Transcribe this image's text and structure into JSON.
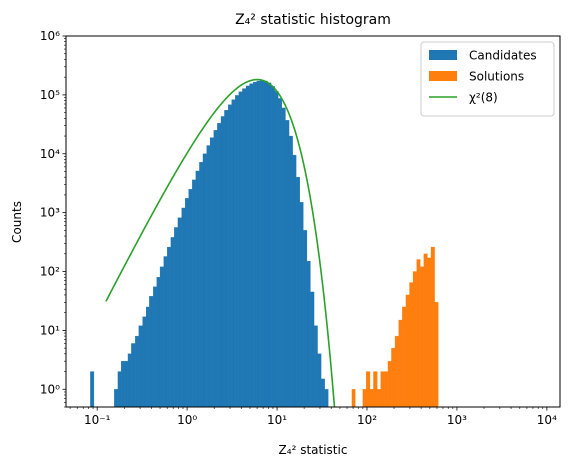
{
  "chart_data": {
    "type": "histogram",
    "title": "Z₄² statistic histogram",
    "xlabel": "Z₄² statistic",
    "ylabel": "Counts",
    "xscale": "log",
    "yscale": "log",
    "xlim": [
      0.045,
      14000
    ],
    "ylim": [
      0.5,
      1000000
    ],
    "x_tick_labels": [
      "10⁻¹",
      "10⁰",
      "10¹",
      "10²",
      "10³",
      "10⁴"
    ],
    "y_tick_labels": [
      "10⁰",
      "10¹",
      "10²",
      "10³",
      "10⁴",
      "10⁵",
      "10⁶"
    ],
    "legend_position": "upper right",
    "colors": {
      "candidates": "#1f77b4",
      "solutions": "#ff7f0e",
      "chi2": "#2ca02c"
    },
    "series": [
      {
        "name": "Candidates",
        "kind": "hist",
        "bins": [
          [
            0.084,
            0.092,
            2
          ],
          [
            0.155,
            0.17,
            1
          ],
          [
            0.17,
            0.185,
            2
          ],
          [
            0.185,
            0.2,
            3
          ],
          [
            0.2,
            0.22,
            3
          ],
          [
            0.22,
            0.24,
            4
          ],
          [
            0.24,
            0.265,
            6
          ],
          [
            0.265,
            0.29,
            8
          ],
          [
            0.29,
            0.32,
            12
          ],
          [
            0.32,
            0.35,
            17
          ],
          [
            0.35,
            0.38,
            25
          ],
          [
            0.38,
            0.42,
            38
          ],
          [
            0.42,
            0.46,
            55
          ],
          [
            0.46,
            0.5,
            80
          ],
          [
            0.5,
            0.55,
            120
          ],
          [
            0.55,
            0.6,
            180
          ],
          [
            0.6,
            0.66,
            260
          ],
          [
            0.66,
            0.72,
            380
          ],
          [
            0.72,
            0.79,
            560
          ],
          [
            0.79,
            0.87,
            820
          ],
          [
            0.87,
            0.95,
            1200
          ],
          [
            0.95,
            1.04,
            1750
          ],
          [
            1.04,
            1.14,
            2500
          ],
          [
            1.14,
            1.25,
            3600
          ],
          [
            1.25,
            1.37,
            5100
          ],
          [
            1.37,
            1.5,
            7200
          ],
          [
            1.5,
            1.65,
            10000
          ],
          [
            1.65,
            1.8,
            13800
          ],
          [
            1.8,
            1.98,
            18800
          ],
          [
            1.98,
            2.17,
            25000
          ],
          [
            2.17,
            2.38,
            33000
          ],
          [
            2.38,
            2.6,
            43000
          ],
          [
            2.6,
            2.86,
            55000
          ],
          [
            2.86,
            3.13,
            68000
          ],
          [
            3.13,
            3.43,
            83000
          ],
          [
            3.43,
            3.76,
            98000
          ],
          [
            3.76,
            4.12,
            113000
          ],
          [
            4.12,
            4.52,
            128000
          ],
          [
            4.52,
            4.95,
            142000
          ],
          [
            4.95,
            5.43,
            155000
          ],
          [
            5.43,
            5.95,
            165000
          ],
          [
            5.95,
            6.52,
            172000
          ],
          [
            6.52,
            7.15,
            175000
          ],
          [
            7.15,
            7.83,
            172000
          ],
          [
            7.83,
            8.58,
            160000
          ],
          [
            8.58,
            9.4,
            140000
          ],
          [
            9.4,
            10.3,
            115000
          ],
          [
            10.3,
            11.3,
            87000
          ],
          [
            11.3,
            12.4,
            60000
          ],
          [
            12.4,
            13.6,
            37000
          ],
          [
            13.6,
            14.9,
            20000
          ],
          [
            14.9,
            16.3,
            9500
          ],
          [
            16.3,
            17.9,
            4000
          ],
          [
            17.9,
            19.6,
            1500
          ],
          [
            19.6,
            21.5,
            500
          ],
          [
            21.5,
            23.5,
            150
          ],
          [
            23.5,
            25.8,
            45
          ],
          [
            25.8,
            28.2,
            12
          ],
          [
            28.2,
            30.9,
            4
          ],
          [
            30.9,
            33.9,
            1.5
          ],
          [
            33.9,
            37.1,
            1
          ]
        ]
      },
      {
        "name": "Solutions",
        "kind": "hist",
        "bins": [
          [
            68,
            74,
            1
          ],
          [
            90,
            98,
            1
          ],
          [
            98,
            108,
            2
          ],
          [
            108,
            118,
            1
          ],
          [
            118,
            130,
            2
          ],
          [
            130,
            142,
            1
          ],
          [
            142,
            156,
            2
          ],
          [
            156,
            171,
            2
          ],
          [
            171,
            187,
            3
          ],
          [
            187,
            205,
            5
          ],
          [
            205,
            225,
            8
          ],
          [
            225,
            247,
            15
          ],
          [
            247,
            271,
            25
          ],
          [
            271,
            297,
            40
          ],
          [
            297,
            325,
            65
          ],
          [
            325,
            357,
            100
          ],
          [
            357,
            391,
            160
          ],
          [
            391,
            429,
            120
          ],
          [
            429,
            470,
            200
          ],
          [
            470,
            515,
            170
          ],
          [
            515,
            565,
            260
          ],
          [
            565,
            620,
            30
          ]
        ]
      },
      {
        "name": "χ²(8)",
        "kind": "line",
        "dof": 8,
        "scale": 182000,
        "x_range": [
          0.125,
          48
        ]
      }
    ]
  }
}
